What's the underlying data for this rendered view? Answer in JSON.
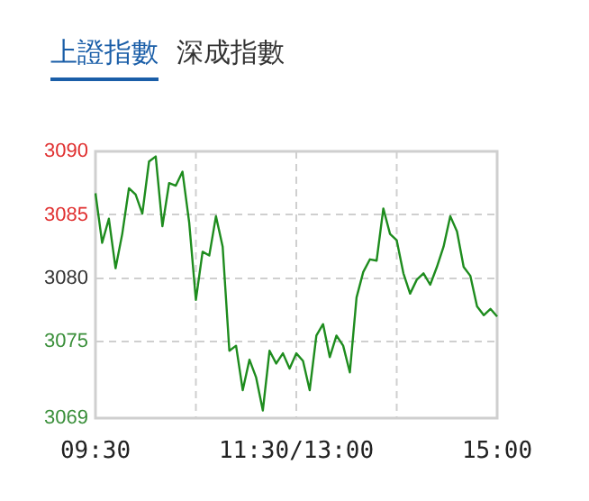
{
  "chart_data": {
    "type": "line",
    "annotations": [
      "上證指數",
      "深成指數"
    ],
    "categories": [
      "09:30",
      null,
      null,
      null,
      null,
      null,
      null,
      null,
      null,
      null,
      null,
      null,
      null,
      null,
      null,
      null,
      null,
      null,
      null,
      null,
      null,
      null,
      null,
      null,
      null,
      null,
      null,
      null,
      null,
      null,
      "11:30/13:00",
      null,
      null,
      null,
      null,
      null,
      null,
      null,
      null,
      null,
      null,
      null,
      null,
      null,
      null,
      null,
      null,
      null,
      null,
      null,
      null,
      null,
      null,
      null,
      null,
      null,
      null,
      null,
      null,
      null,
      "15:00"
    ],
    "series": [
      {
        "color": "#1e8c1e",
        "values": [
          3086.7,
          3082.8,
          3084.7,
          3080.8,
          3083.5,
          3087.1,
          3086.6,
          3085.1,
          3089.2,
          3089.6,
          3084.1,
          3087.5,
          3087.3,
          3088.4,
          3084.4,
          3078.3,
          3082.1,
          3081.8,
          3084.9,
          3082.5,
          3074.3,
          3074.7,
          3071.2,
          3073.6,
          3072.2,
          3069.6,
          3074.3,
          3073.3,
          3074.1,
          3072.9,
          3074.1,
          3073.5,
          3071.2,
          3075.5,
          3076.4,
          3073.8,
          3075.5,
          3074.7,
          3072.6,
          3078.5,
          3080.5,
          3081.5,
          3081.4,
          3085.5,
          3083.5,
          3083.0,
          3080.4,
          3078.8,
          3079.9,
          3080.4,
          3079.5,
          3080.9,
          3082.5,
          3084.9,
          3083.7,
          3080.9,
          3080.2,
          3077.8,
          3077.1,
          3077.6,
          3077.0
        ]
      }
    ],
    "ylim": [
      3069,
      3090
    ],
    "yticks": [
      3069,
      3075,
      3080,
      3085,
      3090
    ],
    "grid": true,
    "legend": false,
    "marker": "none",
    "line_style": "solid"
  }
}
